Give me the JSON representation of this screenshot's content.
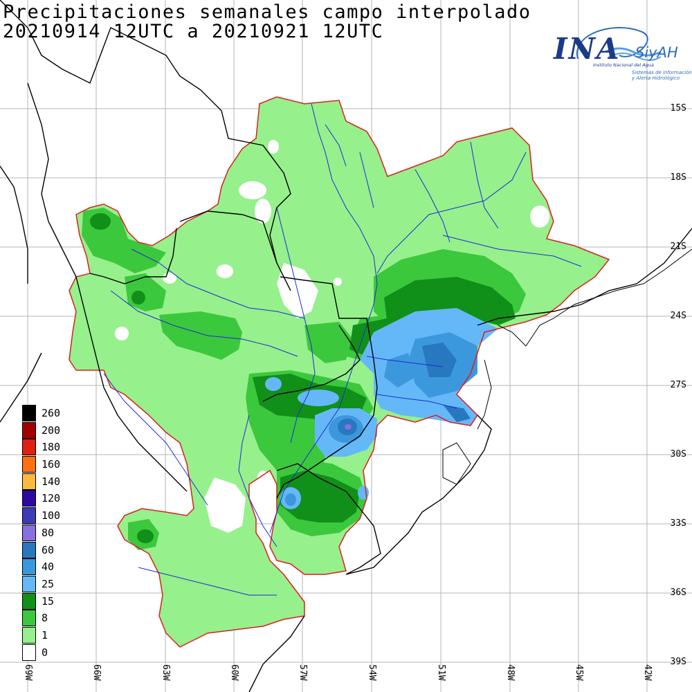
{
  "title": {
    "line1": "Precipitaciones semanales campo interpolado",
    "line2": "20210914 12UTC a 20210921 12UTC"
  },
  "logo": {
    "ina": "INA",
    "siyah": "SiyAH",
    "institute": "Instituto Nacional del Agua",
    "system_line1": "Sistemas de información",
    "system_line2": "y Alerta Hidrológico"
  },
  "latitude_labels": [
    "15S",
    "18S",
    "21S",
    "24S",
    "27S",
    "30S",
    "33S",
    "36S",
    "39S"
  ],
  "longitude_labels": [
    "69W",
    "66W",
    "63W",
    "60W",
    "57W",
    "54W",
    "51W",
    "48W",
    "45W",
    "42W"
  ],
  "legend": [
    {
      "label": "260",
      "color": "#000000"
    },
    {
      "label": "200",
      "color": "#a00000"
    },
    {
      "label": "180",
      "color": "#e02010"
    },
    {
      "label": "160",
      "color": "#ff7010"
    },
    {
      "label": "140",
      "color": "#ffb840"
    },
    {
      "label": "120",
      "color": "#2a0aa0"
    },
    {
      "label": "100",
      "color": "#3c3cb8"
    },
    {
      "label": "80",
      "color": "#8870e0"
    },
    {
      "label": "60",
      "color": "#2878c0"
    },
    {
      "label": "40",
      "color": "#3c98dc"
    },
    {
      "label": "25",
      "color": "#64b8f8"
    },
    {
      "label": "15",
      "color": "#109018"
    },
    {
      "label": "8",
      "color": "#3cc83c"
    },
    {
      "label": "1",
      "color": "#96f08c"
    },
    {
      "label": "0",
      "color": "#ffffff"
    }
  ],
  "map_colors": {
    "basin_outline": "#dc1e1e",
    "rivers": "#1e2ad8",
    "borders": "#000000",
    "grid": "#b0b0b0"
  }
}
